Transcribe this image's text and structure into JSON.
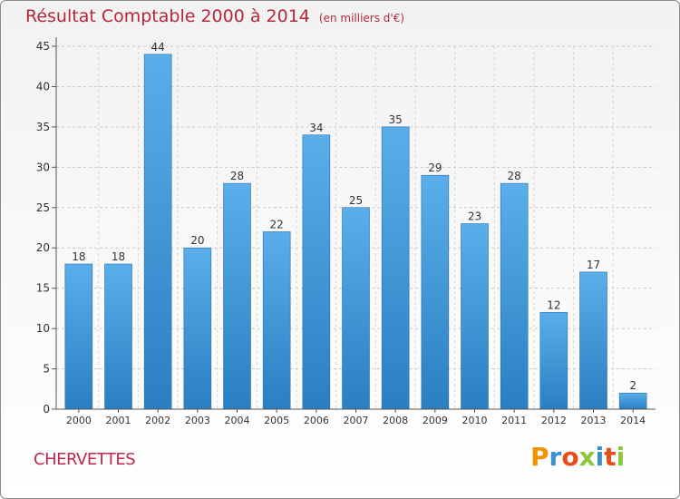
{
  "header": {
    "title": "Résultat Comptable 2000 à 2014",
    "subtitle": "(en milliers d'€)"
  },
  "footer": {
    "place_name": "CHERVETTES",
    "logo_text": "Proxiti",
    "logo_colors": [
      "#f29400",
      "#3b8fd1",
      "#e84e1b",
      "#8cc63f",
      "#3b8fd1",
      "#e84e1b",
      "#8cc63f"
    ]
  },
  "chart_data": {
    "type": "bar",
    "categories": [
      "2000",
      "2001",
      "2002",
      "2003",
      "2004",
      "2005",
      "2006",
      "2007",
      "2008",
      "2009",
      "2010",
      "2011",
      "2012",
      "2013",
      "2014"
    ],
    "values": [
      18,
      18,
      44,
      20,
      28,
      22,
      34,
      25,
      35,
      29,
      23,
      28,
      12,
      17,
      2
    ],
    "ylim": [
      0,
      45
    ],
    "yticks": [
      0,
      5,
      10,
      15,
      20,
      25,
      30,
      35,
      40,
      45
    ],
    "grid": true,
    "bar_color_top": "#5aaeea",
    "bar_color_bottom": "#2a7fc2"
  }
}
